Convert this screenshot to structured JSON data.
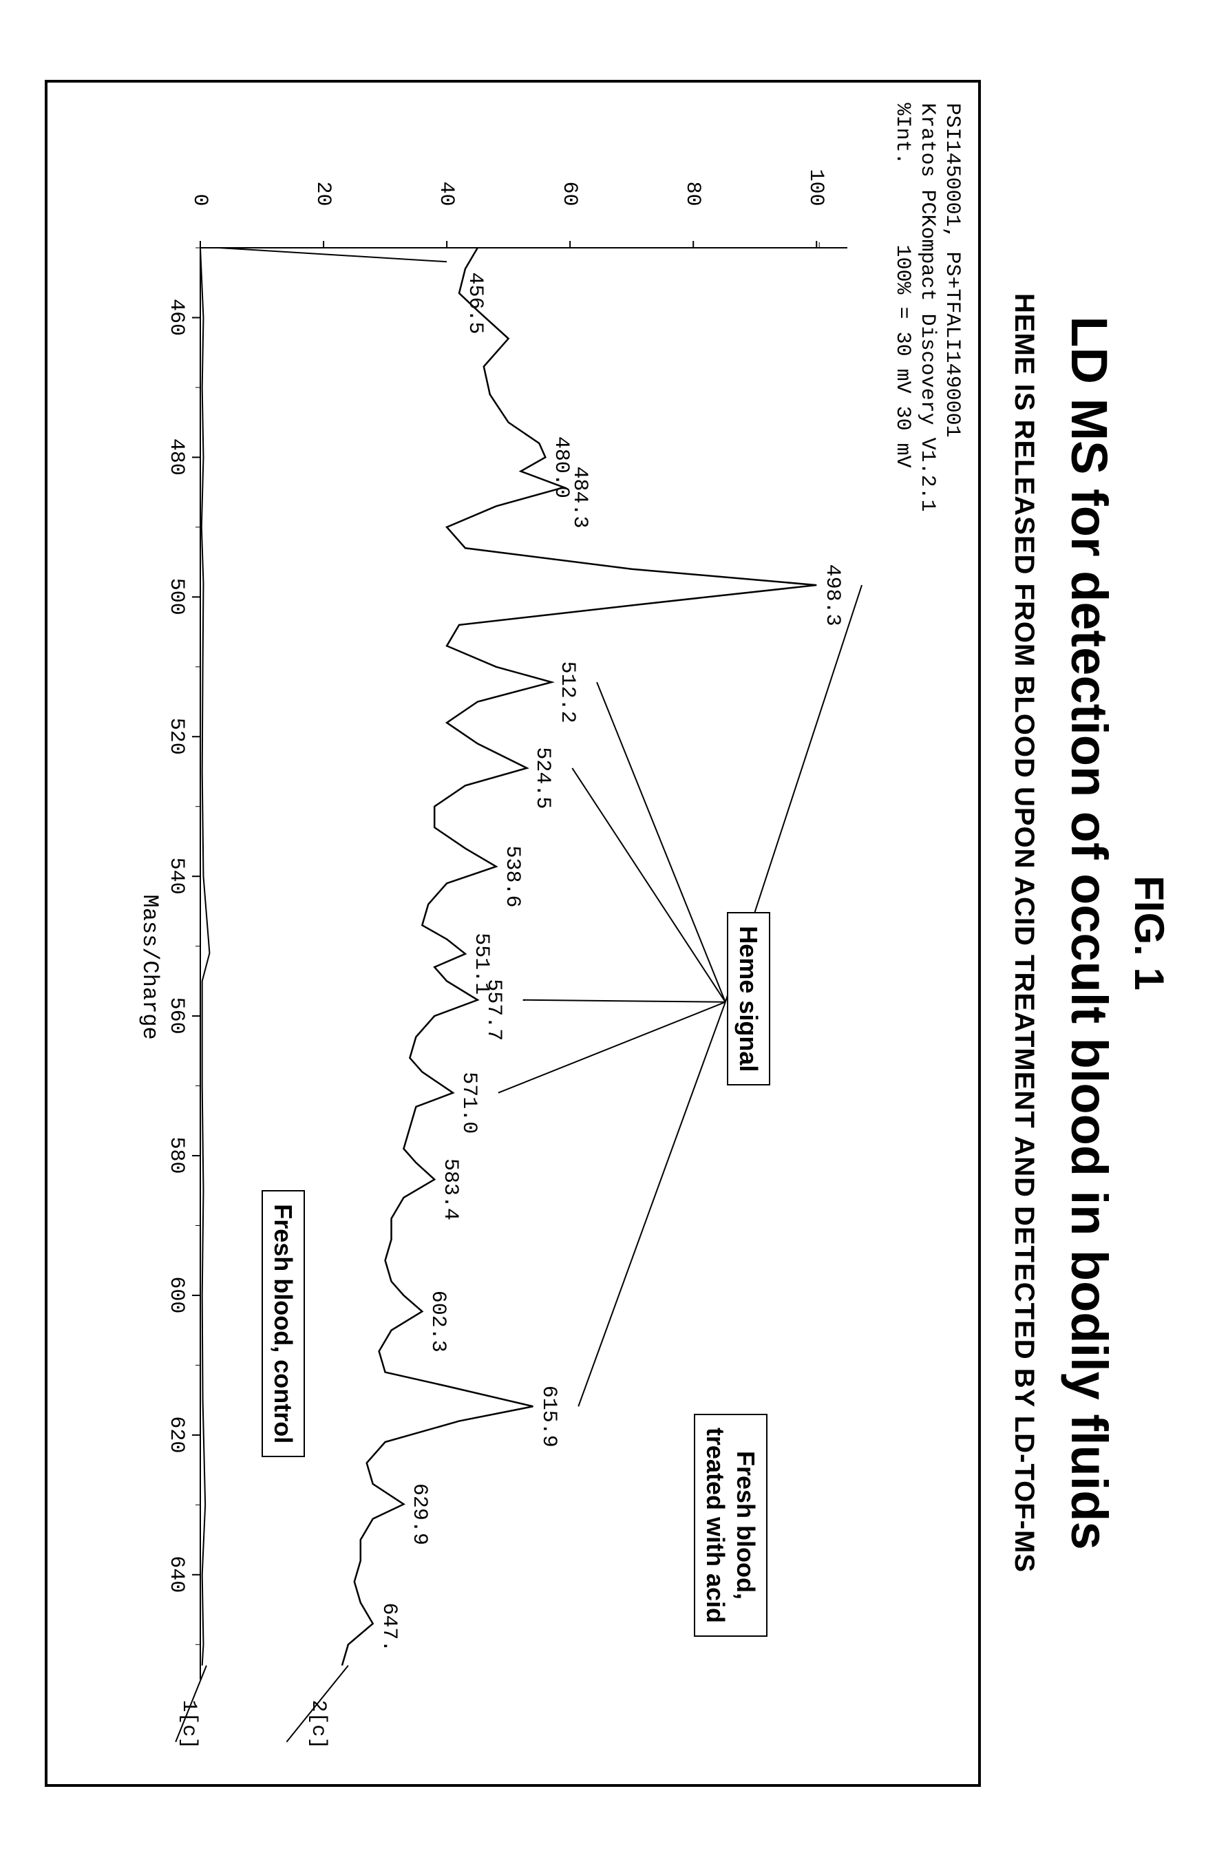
{
  "figure_label": "FIG. 1",
  "main_title": "LD MS for detection of occult blood in bodily fluids",
  "sub_title": "HEME IS RELEASED FROM BLOOD UPON ACID TREATMENT AND DETECTED BY LD-TOF-MS",
  "instrument": {
    "line1": "PSI1450001, PS+TFALI1490001",
    "line2": "Kratos PCKompact Discovery V1.2.1",
    "line3_left": "%Int.",
    "line3_right": "100% = 30 mV 30 mV"
  },
  "chart": {
    "type": "line",
    "xlabel": "Mass/Charge",
    "xlim": [
      450,
      655
    ],
    "ylim": [
      0,
      105
    ],
    "x_ticks": [
      460,
      480,
      500,
      520,
      540,
      560,
      580,
      600,
      620,
      640
    ],
    "y_ticks": [
      0,
      20,
      40,
      60,
      80,
      100
    ],
    "line_color": "#000000",
    "background_color": "#ffffff",
    "series_top": {
      "name": "Fresh blood, treated with acid",
      "trace_id": "2[c]",
      "points": [
        [
          450,
          45
        ],
        [
          453,
          43
        ],
        [
          456.5,
          42
        ],
        [
          459,
          45
        ],
        [
          463,
          50
        ],
        [
          467,
          46
        ],
        [
          471,
          47
        ],
        [
          475,
          50
        ],
        [
          478,
          55
        ],
        [
          480,
          56
        ],
        [
          482,
          52
        ],
        [
          484.3,
          59
        ],
        [
          487,
          48
        ],
        [
          490,
          40
        ],
        [
          493,
          43
        ],
        [
          496,
          70
        ],
        [
          498.3,
          100
        ],
        [
          501,
          72
        ],
        [
          504,
          42
        ],
        [
          507,
          40
        ],
        [
          510,
          48
        ],
        [
          512.2,
          57
        ],
        [
          515,
          45
        ],
        [
          518,
          40
        ],
        [
          521,
          45
        ],
        [
          524.5,
          53
        ],
        [
          527,
          43
        ],
        [
          530,
          38
        ],
        [
          533,
          38
        ],
        [
          536,
          43
        ],
        [
          538.6,
          48
        ],
        [
          541,
          40
        ],
        [
          544,
          37
        ],
        [
          547,
          36
        ],
        [
          549,
          40
        ],
        [
          551.1,
          43
        ],
        [
          553,
          38
        ],
        [
          555,
          40
        ],
        [
          557.7,
          45
        ],
        [
          560,
          38
        ],
        [
          563,
          35
        ],
        [
          566,
          34
        ],
        [
          568,
          36
        ],
        [
          571,
          41
        ],
        [
          573,
          35
        ],
        [
          576,
          34
        ],
        [
          579,
          33
        ],
        [
          581,
          35
        ],
        [
          583.4,
          38
        ],
        [
          586,
          33
        ],
        [
          589,
          31
        ],
        [
          592,
          31
        ],
        [
          595,
          30
        ],
        [
          598,
          31
        ],
        [
          600,
          33
        ],
        [
          602.3,
          36
        ],
        [
          605,
          31
        ],
        [
          608,
          29
        ],
        [
          611,
          30
        ],
        [
          613,
          40
        ],
        [
          615.9,
          54
        ],
        [
          618,
          42
        ],
        [
          621,
          30
        ],
        [
          624,
          27
        ],
        [
          627,
          28
        ],
        [
          629.9,
          33
        ],
        [
          632,
          28
        ],
        [
          635,
          26
        ],
        [
          638,
          26
        ],
        [
          641,
          25
        ],
        [
          644,
          26
        ],
        [
          647,
          28
        ],
        [
          650,
          24
        ],
        [
          653,
          23
        ]
      ],
      "peak_labels": [
        {
          "mz": 456.5,
          "y": 42,
          "text": "456.5"
        },
        {
          "mz": 480.0,
          "y": 56,
          "text": "480.0"
        },
        {
          "mz": 484.3,
          "y": 59,
          "text": "484.3"
        },
        {
          "mz": 498.3,
          "y": 100,
          "text": "498.3"
        },
        {
          "mz": 512.2,
          "y": 57,
          "text": "512.2"
        },
        {
          "mz": 524.5,
          "y": 53,
          "text": "524.5"
        },
        {
          "mz": 538.6,
          "y": 48,
          "text": "538.6"
        },
        {
          "mz": 551.1,
          "y": 43,
          "text": "551.1"
        },
        {
          "mz": 557.7,
          "y": 45,
          "text": "557.7"
        },
        {
          "mz": 571.0,
          "y": 41,
          "text": "571.0"
        },
        {
          "mz": 583.4,
          "y": 38,
          "text": "583.4"
        },
        {
          "mz": 602.3,
          "y": 36,
          "text": "602.3"
        },
        {
          "mz": 615.9,
          "y": 54,
          "text": "615.9"
        },
        {
          "mz": 629.9,
          "y": 33,
          "text": "629.9"
        },
        {
          "mz": 647.0,
          "y": 28,
          "text": "647."
        }
      ]
    },
    "series_bottom": {
      "name": "Fresh blood, control",
      "trace_id": "1[c]",
      "points": [
        [
          450,
          0
        ],
        [
          460,
          0.5
        ],
        [
          470,
          0.3
        ],
        [
          480,
          0.5
        ],
        [
          490,
          0.2
        ],
        [
          498,
          0.5
        ],
        [
          510,
          0.4
        ],
        [
          525,
          0.3
        ],
        [
          540,
          0.5
        ],
        [
          551,
          1.5
        ],
        [
          555,
          0.3
        ],
        [
          570,
          0.3
        ],
        [
          585,
          0.5
        ],
        [
          600,
          0.3
        ],
        [
          615,
          0.4
        ],
        [
          630,
          0.8
        ],
        [
          640,
          0.3
        ],
        [
          650,
          0.5
        ],
        [
          653,
          0.3
        ]
      ]
    },
    "heme_label": "Heme signal",
    "heme_source": {
      "mz": 558,
      "y": 88
    },
    "heme_targets_mz": [
      498.3,
      512.2,
      524.5,
      557.7,
      571.0,
      615.9
    ],
    "box_top": "Fresh blood,\ntreated with acid",
    "box_control": "Fresh blood, control"
  }
}
